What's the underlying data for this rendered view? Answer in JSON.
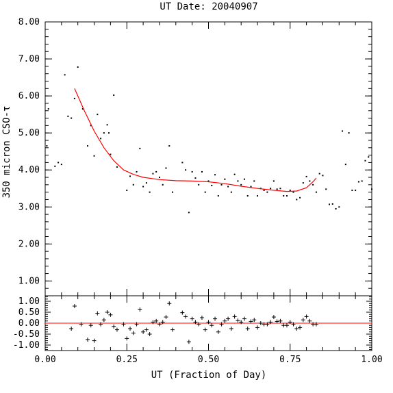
{
  "chart_data": [
    {
      "type": "scatter",
      "title": "UT Date: 20040907",
      "ylabel": "350 micron CSO-τ",
      "xlim": [
        0,
        1
      ],
      "ylim": [
        0.6,
        8.0
      ],
      "yticks": [
        "1.00",
        "2.00",
        "3.00",
        "4.00",
        "5.00",
        "6.00",
        "7.00",
        "8.00"
      ],
      "fit_color": "#ff0000",
      "points": [
        [
          0.005,
          4.65
        ],
        [
          0.01,
          5.65
        ],
        [
          0.03,
          4.1
        ],
        [
          0.04,
          4.2
        ],
        [
          0.05,
          4.15
        ],
        [
          0.06,
          6.57
        ],
        [
          0.07,
          5.45
        ],
        [
          0.08,
          5.4
        ],
        [
          0.09,
          5.93
        ],
        [
          0.1,
          6.78
        ],
        [
          0.115,
          5.65
        ],
        [
          0.13,
          4.65
        ],
        [
          0.14,
          5.2
        ],
        [
          0.15,
          4.38
        ],
        [
          0.16,
          5.5
        ],
        [
          0.17,
          4.85
        ],
        [
          0.18,
          5.0
        ],
        [
          0.19,
          5.22
        ],
        [
          0.195,
          5.0
        ],
        [
          0.2,
          4.42
        ],
        [
          0.21,
          6.02
        ],
        [
          0.22,
          4.08
        ],
        [
          0.25,
          3.45
        ],
        [
          0.26,
          3.83
        ],
        [
          0.27,
          3.6
        ],
        [
          0.28,
          3.95
        ],
        [
          0.29,
          4.58
        ],
        [
          0.3,
          3.55
        ],
        [
          0.31,
          3.65
        ],
        [
          0.32,
          3.4
        ],
        [
          0.33,
          3.9
        ],
        [
          0.34,
          3.95
        ],
        [
          0.35,
          3.8
        ],
        [
          0.36,
          3.6
        ],
        [
          0.37,
          4.05
        ],
        [
          0.38,
          4.65
        ],
        [
          0.39,
          3.4
        ],
        [
          0.42,
          4.2
        ],
        [
          0.43,
          4.0
        ],
        [
          0.44,
          2.85
        ],
        [
          0.45,
          3.95
        ],
        [
          0.46,
          3.78
        ],
        [
          0.47,
          3.6
        ],
        [
          0.48,
          3.95
        ],
        [
          0.49,
          3.4
        ],
        [
          0.5,
          3.7
        ],
        [
          0.51,
          3.58
        ],
        [
          0.52,
          3.87
        ],
        [
          0.53,
          3.3
        ],
        [
          0.54,
          3.6
        ],
        [
          0.55,
          3.75
        ],
        [
          0.56,
          3.55
        ],
        [
          0.57,
          3.4
        ],
        [
          0.58,
          3.88
        ],
        [
          0.59,
          3.7
        ],
        [
          0.6,
          3.6
        ],
        [
          0.61,
          3.75
        ],
        [
          0.62,
          3.3
        ],
        [
          0.63,
          3.55
        ],
        [
          0.64,
          3.7
        ],
        [
          0.65,
          3.3
        ],
        [
          0.66,
          3.5
        ],
        [
          0.67,
          3.45
        ],
        [
          0.68,
          3.4
        ],
        [
          0.69,
          3.5
        ],
        [
          0.7,
          3.7
        ],
        [
          0.71,
          3.48
        ],
        [
          0.72,
          3.5
        ],
        [
          0.73,
          3.3
        ],
        [
          0.74,
          3.3
        ],
        [
          0.75,
          3.45
        ],
        [
          0.76,
          3.4
        ],
        [
          0.77,
          3.2
        ],
        [
          0.78,
          3.25
        ],
        [
          0.79,
          3.65
        ],
        [
          0.8,
          3.82
        ],
        [
          0.81,
          3.7
        ],
        [
          0.82,
          3.6
        ],
        [
          0.83,
          3.4
        ],
        [
          0.84,
          3.9
        ],
        [
          0.85,
          3.85
        ],
        [
          0.86,
          3.48
        ],
        [
          0.87,
          3.07
        ],
        [
          0.88,
          3.08
        ],
        [
          0.89,
          2.95
        ],
        [
          0.9,
          3.0
        ],
        [
          0.91,
          5.05
        ],
        [
          0.92,
          4.15
        ],
        [
          0.93,
          5.0
        ],
        [
          0.94,
          3.45
        ],
        [
          0.95,
          3.45
        ],
        [
          0.96,
          3.68
        ],
        [
          0.97,
          3.7
        ],
        [
          0.98,
          4.25
        ],
        [
          0.99,
          4.35
        ],
        [
          1.0,
          3.48
        ]
      ],
      "fit": [
        [
          0.09,
          6.2
        ],
        [
          0.12,
          5.6
        ],
        [
          0.15,
          5.05
        ],
        [
          0.18,
          4.6
        ],
        [
          0.21,
          4.25
        ],
        [
          0.24,
          4.0
        ],
        [
          0.27,
          3.88
        ],
        [
          0.3,
          3.8
        ],
        [
          0.35,
          3.74
        ],
        [
          0.4,
          3.71
        ],
        [
          0.45,
          3.7
        ],
        [
          0.5,
          3.68
        ],
        [
          0.55,
          3.63
        ],
        [
          0.6,
          3.56
        ],
        [
          0.65,
          3.5
        ],
        [
          0.7,
          3.45
        ],
        [
          0.74,
          3.42
        ],
        [
          0.77,
          3.43
        ],
        [
          0.8,
          3.52
        ],
        [
          0.82,
          3.68
        ],
        [
          0.83,
          3.78
        ]
      ]
    },
    {
      "type": "scatter",
      "title": "",
      "xlabel": "UT (Fraction of Day)",
      "ylabel": "",
      "xlim": [
        0,
        1
      ],
      "ylim": [
        -1.25,
        1.25
      ],
      "xticks": [
        "0.00",
        "0.25",
        "0.50",
        "0.75",
        "1.00"
      ],
      "yticks": [
        "-1.00",
        "-0.50",
        "0.00",
        "0.50",
        "1.00"
      ],
      "zero_line_color": "#ff0000",
      "residuals": [
        [
          0.08,
          -0.25
        ],
        [
          0.09,
          0.78
        ],
        [
          0.11,
          -0.05
        ],
        [
          0.13,
          -0.75
        ],
        [
          0.14,
          -0.1
        ],
        [
          0.15,
          -0.8
        ],
        [
          0.16,
          0.45
        ],
        [
          0.17,
          -0.05
        ],
        [
          0.18,
          0.15
        ],
        [
          0.19,
          0.5
        ],
        [
          0.2,
          0.38
        ],
        [
          0.21,
          -0.15
        ],
        [
          0.22,
          -0.3
        ],
        [
          0.24,
          -0.05
        ],
        [
          0.25,
          -0.7
        ],
        [
          0.26,
          -0.25
        ],
        [
          0.27,
          -0.45
        ],
        [
          0.28,
          -0.05
        ],
        [
          0.29,
          0.62
        ],
        [
          0.3,
          -0.4
        ],
        [
          0.31,
          -0.3
        ],
        [
          0.32,
          -0.5
        ],
        [
          0.33,
          0.05
        ],
        [
          0.34,
          0.1
        ],
        [
          0.35,
          -0.05
        ],
        [
          0.36,
          0.05
        ],
        [
          0.37,
          0.28
        ],
        [
          0.38,
          0.9
        ],
        [
          0.39,
          -0.3
        ],
        [
          0.42,
          0.48
        ],
        [
          0.43,
          0.3
        ],
        [
          0.44,
          -0.85
        ],
        [
          0.45,
          0.2
        ],
        [
          0.46,
          0.05
        ],
        [
          0.47,
          -0.05
        ],
        [
          0.48,
          0.25
        ],
        [
          0.49,
          -0.3
        ],
        [
          0.5,
          0.05
        ],
        [
          0.51,
          -0.1
        ],
        [
          0.52,
          0.2
        ],
        [
          0.53,
          -0.4
        ],
        [
          0.54,
          -0.05
        ],
        [
          0.55,
          0.1
        ],
        [
          0.56,
          0.2
        ],
        [
          0.57,
          -0.25
        ],
        [
          0.58,
          0.3
        ],
        [
          0.59,
          0.12
        ],
        [
          0.6,
          0.05
        ],
        [
          0.61,
          0.2
        ],
        [
          0.62,
          -0.25
        ],
        [
          0.63,
          0.08
        ],
        [
          0.64,
          0.15
        ],
        [
          0.65,
          -0.2
        ],
        [
          0.66,
          0.0
        ],
        [
          0.67,
          -0.05
        ],
        [
          0.68,
          -0.05
        ],
        [
          0.69,
          0.05
        ],
        [
          0.7,
          0.28
        ],
        [
          0.71,
          0.08
        ],
        [
          0.72,
          0.1
        ],
        [
          0.73,
          -0.1
        ],
        [
          0.74,
          -0.1
        ],
        [
          0.75,
          0.05
        ],
        [
          0.76,
          -0.05
        ],
        [
          0.77,
          -0.25
        ],
        [
          0.78,
          -0.2
        ],
        [
          0.79,
          0.15
        ],
        [
          0.8,
          0.3
        ],
        [
          0.81,
          0.1
        ],
        [
          0.82,
          -0.05
        ],
        [
          0.83,
          -0.05
        ]
      ]
    }
  ]
}
